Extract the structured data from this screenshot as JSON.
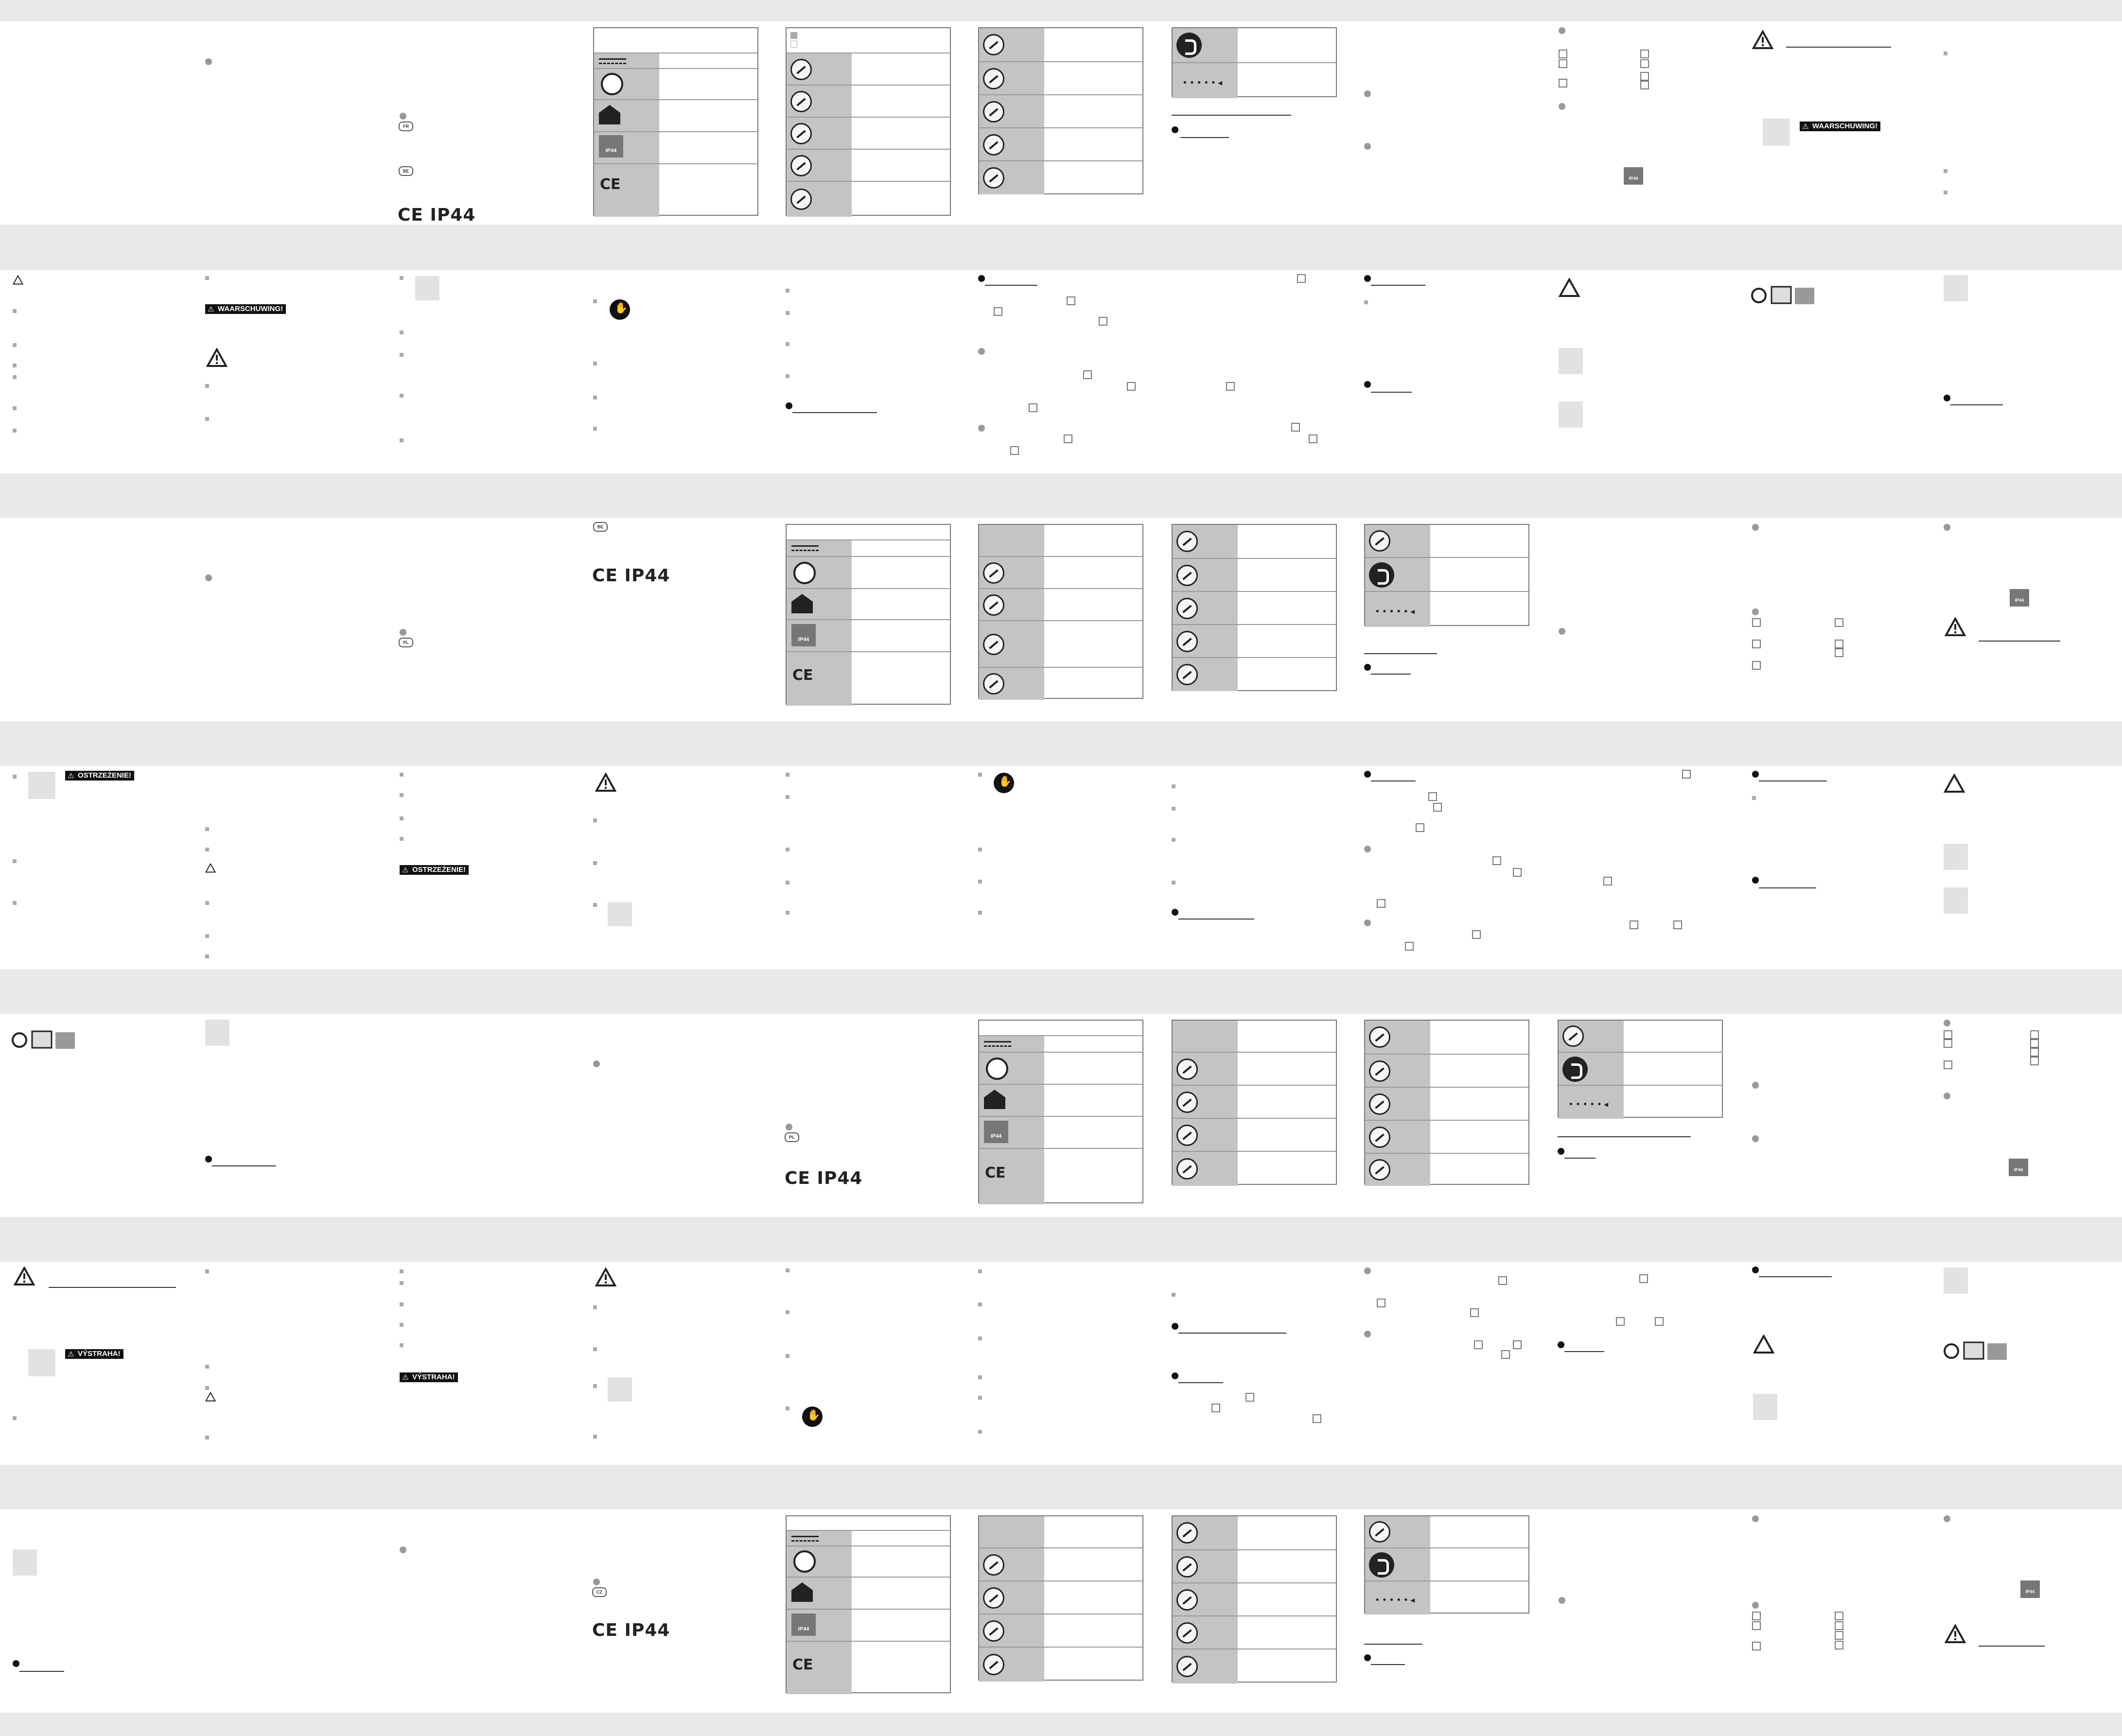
{
  "marks": {
    "ce_ip44": "CE IP44",
    "ip44": "IP44",
    "ce": "CE",
    "dots": "•••••◂"
  },
  "warnings": {
    "nl": "WAARSCHUWING!",
    "pl": "OSTRZEŻENIE!",
    "cz": "VÝSTRAHA!"
  },
  "country_codes": {
    "fr": "FR",
    "be": "BE",
    "pl": "PL",
    "cz": "CZ"
  },
  "icons": {
    "warning": "warning-triangle-icon",
    "plug": "plug-icon",
    "hand": "gloves-icon",
    "recycle": "recycling-icon",
    "bin": "crossed-bin-icon",
    "flame": "flame-icon",
    "child": "child-icon"
  }
}
